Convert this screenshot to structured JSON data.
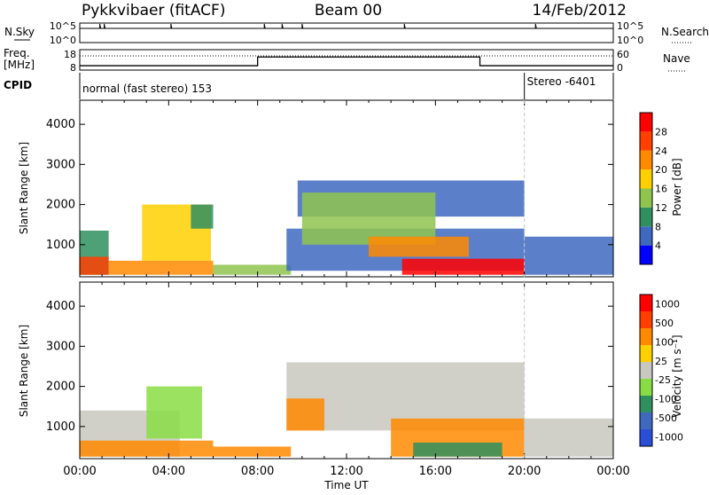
{
  "header": {
    "station": "Pykkvibaer (fitACF)",
    "beam": "Beam 00",
    "date": "14/Feb/2012"
  },
  "sky_panel": {
    "left_label": "N.Sky",
    "right_label": "N.Search",
    "y_ticks_left": [
      "10^5",
      "10^0"
    ],
    "y_ticks_right": [
      "10^5",
      "10^0"
    ]
  },
  "freq_panel": {
    "left_label_1": "Freq.",
    "left_label_2": "[MHz]",
    "right_label": "Nave",
    "y_ticks_left": [
      "18",
      "8"
    ],
    "y_ticks_right": [
      "60",
      "0"
    ],
    "freq_steps": [
      {
        "from_hour": 0,
        "to_hour": 8,
        "level": 0.1
      },
      {
        "from_hour": 8,
        "to_hour": 18,
        "level": 0.6
      },
      {
        "from_hour": 18,
        "to_hour": 24,
        "level": 0.1
      }
    ]
  },
  "cpid": {
    "label": "CPID",
    "segments": [
      {
        "start_hour": 0,
        "text": "normal (fast stereo) 153"
      },
      {
        "start_hour": 20,
        "text": "Stereo -6401"
      }
    ]
  },
  "chart_data": [
    {
      "type": "heatmap",
      "name": "power",
      "ylabel": "Slant Range [km]",
      "y_ticks": [
        1000,
        2000,
        3000,
        4000
      ],
      "ylim": [
        200,
        4600
      ],
      "xlim_hours": [
        0,
        24
      ],
      "colorbar": {
        "label": "Power [dB]",
        "ticks": [
          "4",
          "8",
          "12",
          "16",
          "20",
          "24",
          "28"
        ],
        "colors": [
          "#0000ff",
          "#3f69bf",
          "#2f8f5f",
          "#8fc44f",
          "#ffd000",
          "#ff8a00",
          "#ff4000",
          "#ff0000"
        ]
      },
      "regions": [
        {
          "t0": 0.0,
          "t1": 1.3,
          "r0": 250,
          "r1": 1350,
          "color": "#2f8f5f"
        },
        {
          "t0": 0.0,
          "t1": 1.3,
          "r0": 250,
          "r1": 700,
          "color": "#ff4000"
        },
        {
          "t0": 1.3,
          "t1": 6.0,
          "r0": 250,
          "r1": 600,
          "color": "#ff8a00"
        },
        {
          "t0": 2.8,
          "t1": 5.9,
          "r0": 600,
          "r1": 2000,
          "color": "#ffd000"
        },
        {
          "t0": 5.0,
          "t1": 6.0,
          "r0": 1400,
          "r1": 2000,
          "color": "#2f8f5f"
        },
        {
          "t0": 6.0,
          "t1": 9.5,
          "r0": 250,
          "r1": 500,
          "color": "#8fc44f"
        },
        {
          "t0": 9.3,
          "t1": 20.0,
          "r0": 350,
          "r1": 1400,
          "color": "#3f69bf"
        },
        {
          "t0": 9.8,
          "t1": 20.0,
          "r0": 1700,
          "r1": 2600,
          "color": "#3f69bf"
        },
        {
          "t0": 10.0,
          "t1": 16.0,
          "r0": 1000,
          "r1": 2300,
          "color": "#8fc44f"
        },
        {
          "t0": 13.0,
          "t1": 17.5,
          "r0": 700,
          "r1": 1200,
          "color": "#ff8a00"
        },
        {
          "t0": 14.5,
          "t1": 20.0,
          "r0": 250,
          "r1": 650,
          "color": "#ff0000"
        },
        {
          "t0": 20.0,
          "t1": 24.0,
          "r0": 250,
          "r1": 1200,
          "color": "#3f69bf"
        }
      ]
    },
    {
      "type": "heatmap",
      "name": "velocity",
      "ylabel": "Slant Range [km]",
      "xlabel": "Time UT",
      "y_ticks": [
        1000,
        2000,
        3000,
        4000
      ],
      "ylim": [
        200,
        4600
      ],
      "xlim_hours": [
        0,
        24
      ],
      "x_ticks": [
        "00:00",
        "04:00",
        "08:00",
        "12:00",
        "16:00",
        "20:00",
        "00:00"
      ],
      "colorbar": {
        "label": "Velocity [m s⁻¹]",
        "ticks": [
          "1000",
          "500",
          "100",
          "25",
          "-25",
          "-100",
          "-500",
          "-1000"
        ],
        "colors": [
          "#2a4fd6",
          "#3f69bf",
          "#2f8f5f",
          "#88dd44",
          "#c8c8c0",
          "#ffd000",
          "#ff8a00",
          "#ff4000",
          "#ff0000"
        ]
      },
      "regions": [
        {
          "t0": 0.0,
          "t1": 4.5,
          "r0": 250,
          "r1": 1400,
          "color": "#c8c8c0"
        },
        {
          "t0": 0.0,
          "t1": 6.0,
          "r0": 250,
          "r1": 650,
          "color": "#ff8a00"
        },
        {
          "t0": 3.0,
          "t1": 5.5,
          "r0": 700,
          "r1": 2000,
          "color": "#88dd44"
        },
        {
          "t0": 6.0,
          "t1": 9.5,
          "r0": 250,
          "r1": 500,
          "color": "#ff8a00"
        },
        {
          "t0": 9.3,
          "t1": 20.0,
          "r0": 900,
          "r1": 2600,
          "color": "#c8c8c0"
        },
        {
          "t0": 9.3,
          "t1": 11.0,
          "r0": 900,
          "r1": 1700,
          "color": "#ff8a00"
        },
        {
          "t0": 14.0,
          "t1": 20.0,
          "r0": 250,
          "r1": 1200,
          "color": "#ff8a00"
        },
        {
          "t0": 15.0,
          "t1": 19.0,
          "r0": 250,
          "r1": 600,
          "color": "#2f8f5f"
        },
        {
          "t0": 20.0,
          "t1": 24.0,
          "r0": 250,
          "r1": 1200,
          "color": "#c8c8c0"
        }
      ]
    }
  ]
}
